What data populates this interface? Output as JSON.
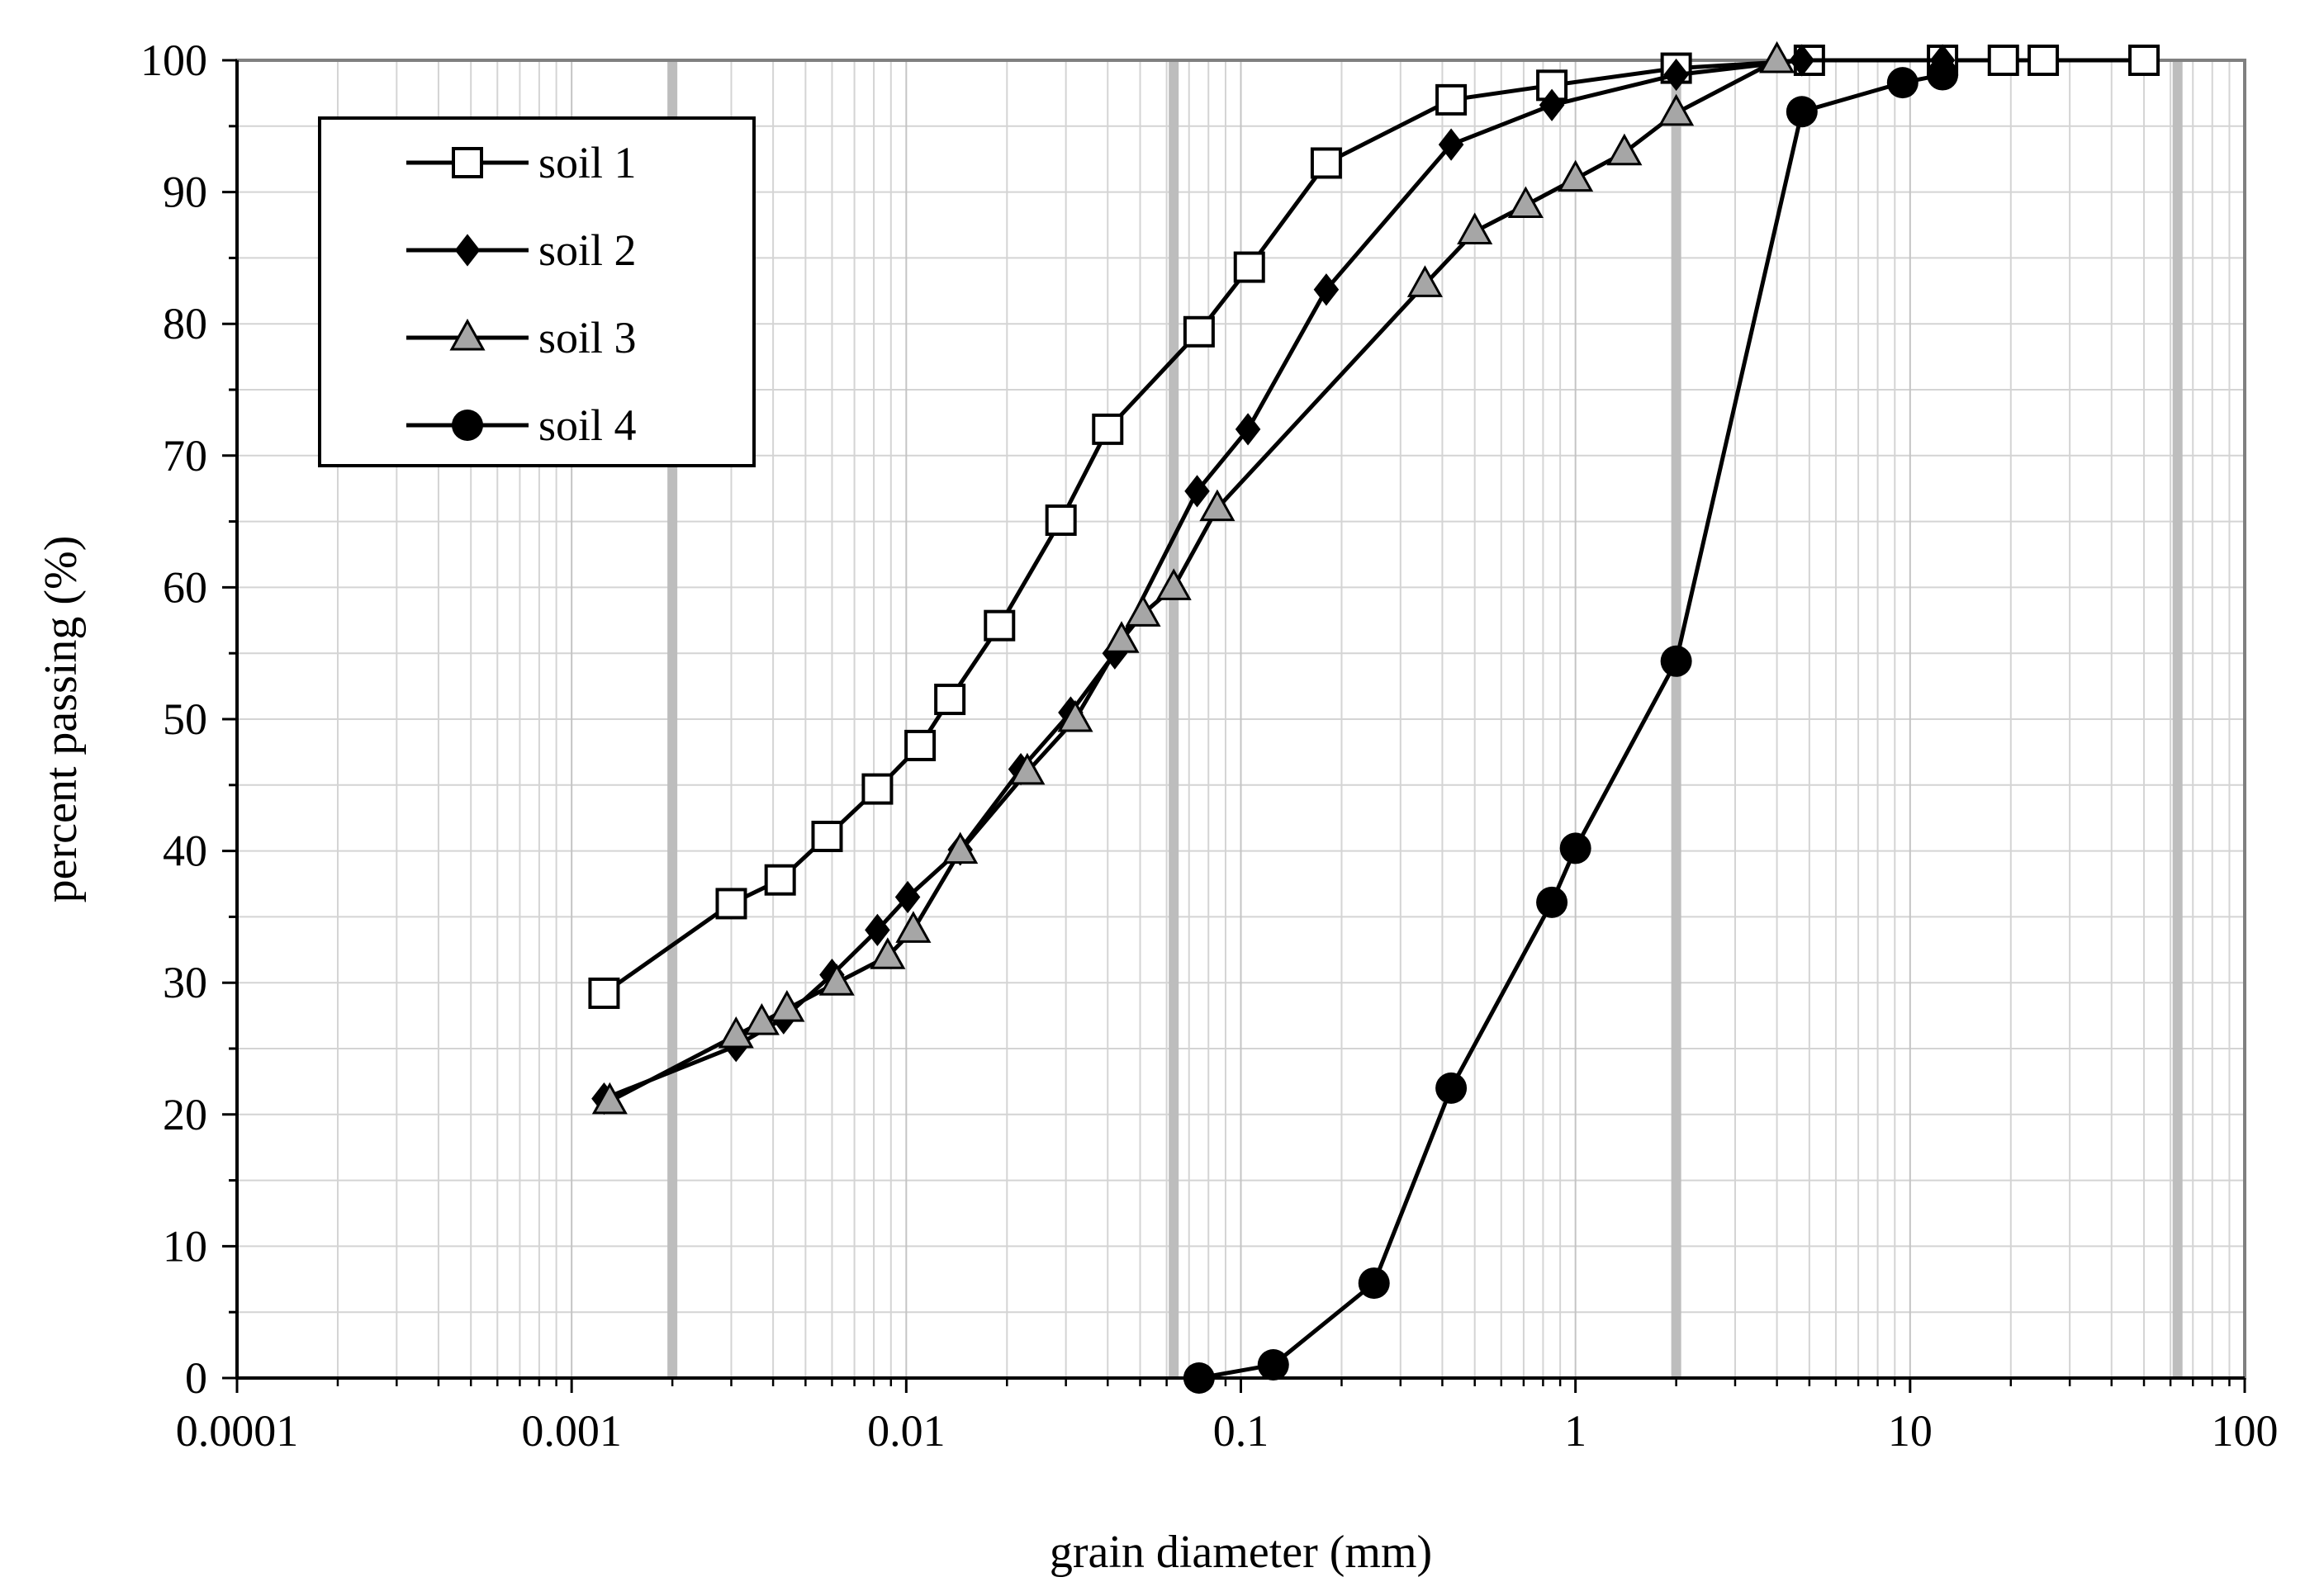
{
  "chart_data": {
    "type": "scatter",
    "title": "",
    "xlabel": "grain diameter (mm)",
    "ylabel": "percent passing (%)",
    "xscale": "log",
    "xlim": [
      0.0001,
      100
    ],
    "ylim": [
      0,
      100
    ],
    "x_tick_labels": [
      "0.0001",
      "0.001",
      "0.01",
      "0.1",
      "1",
      "10",
      "100"
    ],
    "y_tick_labels": [
      "0",
      "10",
      "20",
      "30",
      "40",
      "50",
      "60",
      "70",
      "80",
      "90",
      "100"
    ],
    "grid": true,
    "reference_lines_x": [
      0.002,
      0.063,
      2,
      63
    ],
    "legend_position": "top-left",
    "series": [
      {
        "name": "soil 1",
        "marker": "square-open",
        "x": [
          0.00125,
          0.003,
          0.0042,
          0.0058,
          0.0082,
          0.011,
          0.0135,
          0.019,
          0.029,
          0.04,
          0.075,
          0.106,
          0.18,
          0.425,
          0.85,
          2,
          5,
          12.5,
          19,
          25,
          50
        ],
        "y": [
          29.2,
          36,
          37.8,
          41.1,
          44.7,
          48,
          51.5,
          57.1,
          65.1,
          72,
          79.4,
          84.3,
          92.2,
          97,
          98.1,
          99.4,
          100,
          100,
          100,
          100,
          100
        ]
      },
      {
        "name": "soil 2",
        "marker": "diamond-filled",
        "x": [
          0.00125,
          0.0031,
          0.0043,
          0.006,
          0.0082,
          0.0101,
          0.0145,
          0.022,
          0.031,
          0.042,
          0.074,
          0.105,
          0.18,
          0.425,
          0.85,
          2,
          4.75,
          12.5
        ],
        "y": [
          21.2,
          25.2,
          27.3,
          30.6,
          34,
          36.5,
          40.1,
          46.2,
          50.5,
          55,
          67.3,
          72,
          82.6,
          93.6,
          96.6,
          98.9,
          100,
          100
        ]
      },
      {
        "name": "soil 3",
        "marker": "triangle-gray",
        "x": [
          0.0013,
          0.0031,
          0.0037,
          0.0044,
          0.0062,
          0.0088,
          0.0105,
          0.0145,
          0.023,
          0.032,
          0.044,
          0.051,
          0.063,
          0.085,
          0.355,
          0.5,
          0.71,
          1,
          1.4,
          2,
          4
        ],
        "y": [
          21,
          26,
          27,
          28,
          30,
          32,
          34,
          40,
          46,
          50,
          56,
          58,
          60,
          66,
          83,
          87,
          89,
          91,
          93,
          96,
          100
        ]
      },
      {
        "name": "soil 4",
        "marker": "circle-filled",
        "x": [
          0.075,
          0.125,
          0.25,
          0.425,
          0.85,
          1,
          2,
          4.75,
          9.5,
          12.5
        ],
        "y": [
          0,
          1,
          7.2,
          22,
          36.1,
          40.2,
          54.4,
          96.1,
          98.3,
          98.9
        ]
      }
    ]
  }
}
